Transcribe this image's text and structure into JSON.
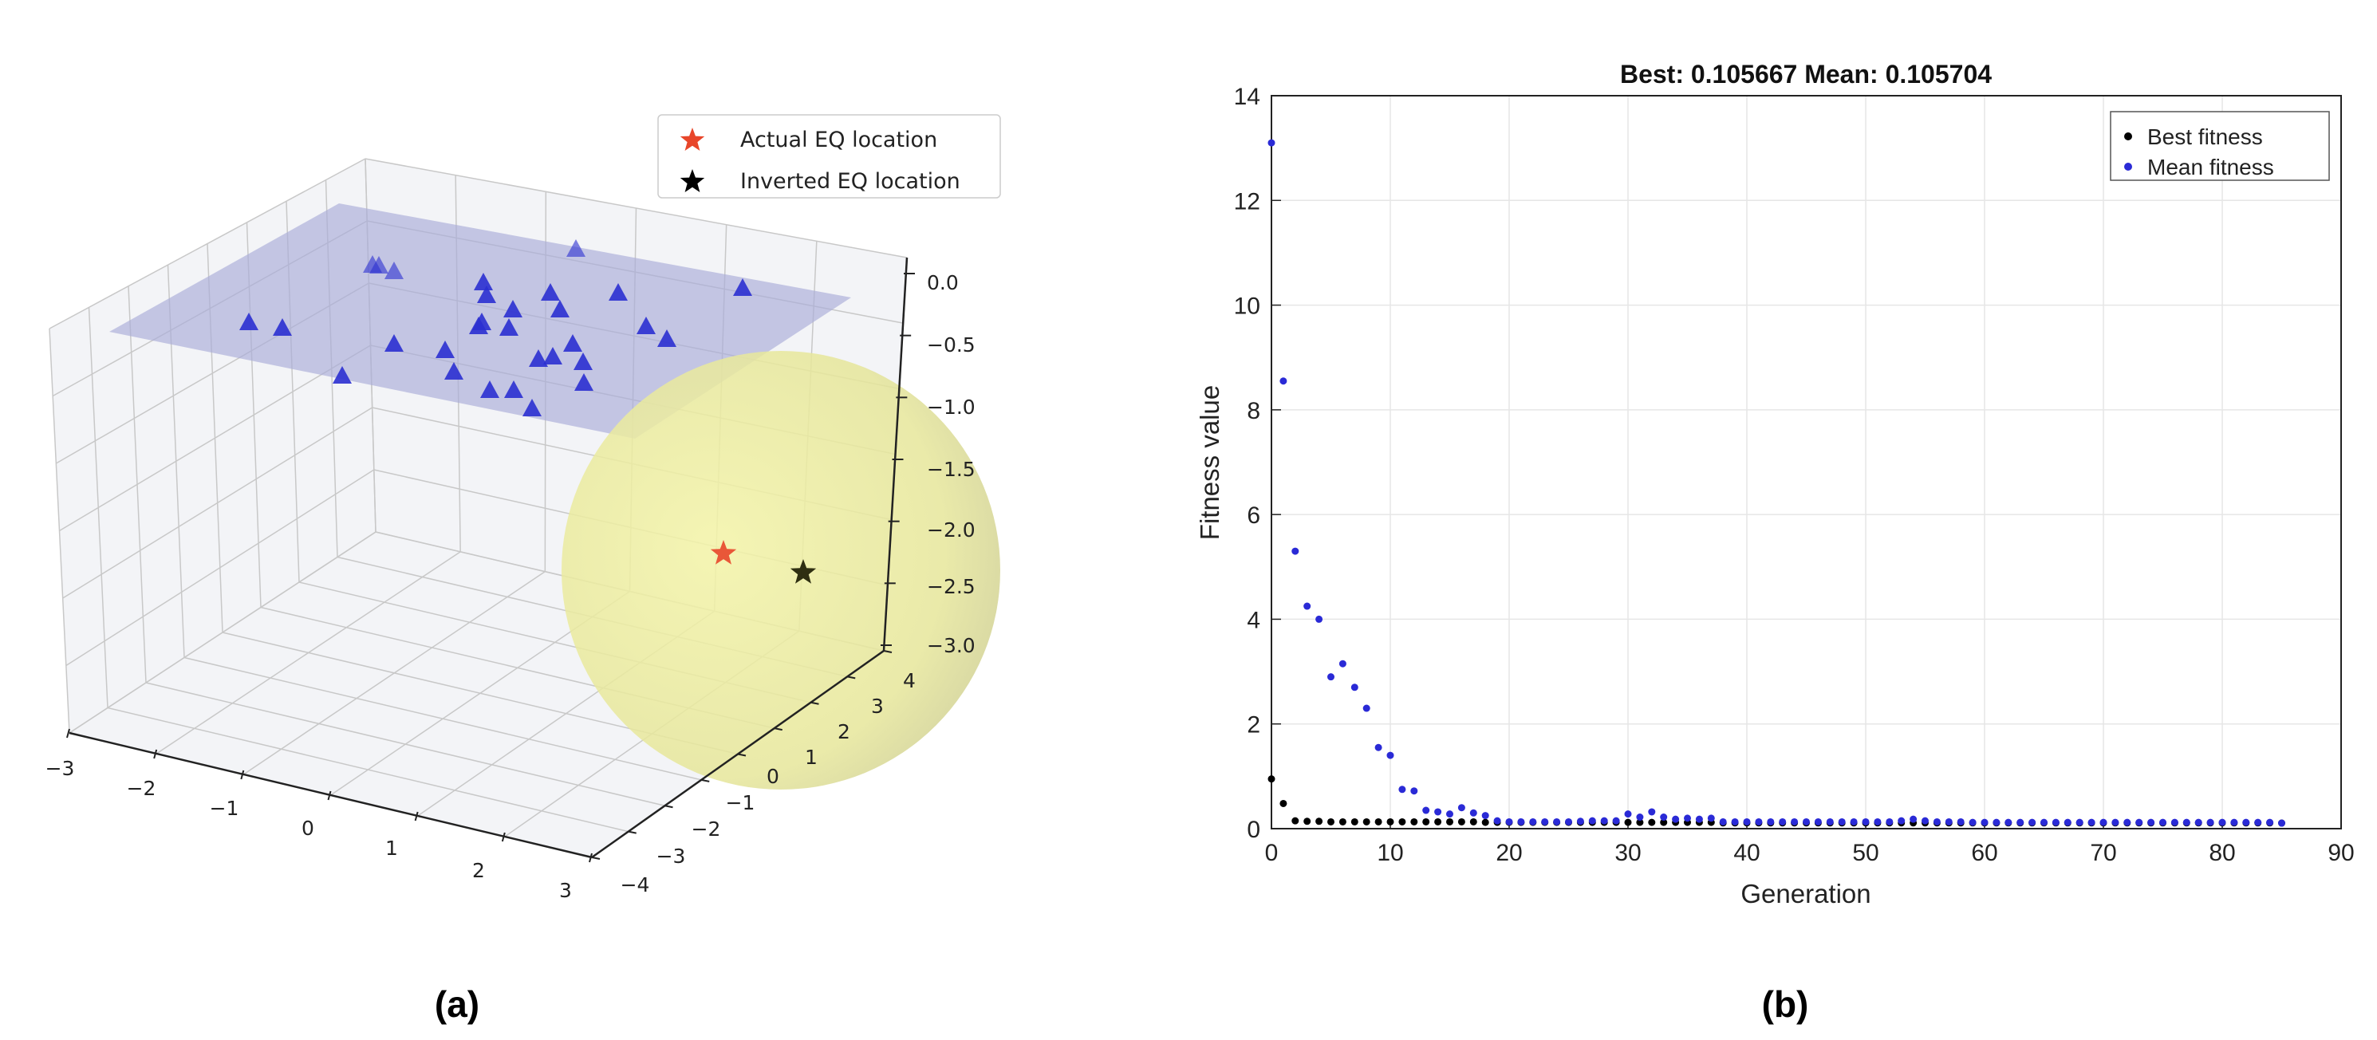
{
  "captions": {
    "a": "(a)",
    "b": "(b)"
  },
  "chart_data": [
    {
      "type": "scatter3d",
      "x_ticks": [
        "−3",
        "−2",
        "−1",
        "0",
        "1",
        "2",
        "3"
      ],
      "y_ticks": [
        "−4",
        "−3",
        "−2",
        "−1",
        "0",
        "1",
        "2",
        "3",
        "4"
      ],
      "z_ticks": [
        "0.0",
        "−0.5",
        "−1.0",
        "−1.5",
        "−2.0",
        "−2.5",
        "−3.0"
      ],
      "xlim": [
        -3,
        3
      ],
      "ylim": [
        -4,
        4
      ],
      "zlim": [
        -3,
        0
      ],
      "grid": true,
      "legend": {
        "placement": "top-right",
        "entries": [
          {
            "label": "Actual EQ location",
            "marker": "star",
            "color": "#e8462a"
          },
          {
            "label": "Inverted EQ location",
            "marker": "star",
            "color": "#000000"
          }
        ]
      },
      "station_marker": {
        "marker": "triangle",
        "color": "#2b2fd0",
        "count": 30
      },
      "surface_plane_color": "#a9acd8",
      "sphere_color": "#eeee99"
    },
    {
      "type": "scatter",
      "title": "Best: 0.105667 Mean: 0.105704",
      "xlabel": "Generation",
      "ylabel": "Fitness value",
      "xlim": [
        0,
        90
      ],
      "ylim": [
        0,
        14
      ],
      "x_ticks": [
        0,
        10,
        20,
        30,
        40,
        50,
        60,
        70,
        80,
        90
      ],
      "y_ticks": [
        0,
        2,
        4,
        6,
        8,
        10,
        12,
        14
      ],
      "grid": true,
      "legend": {
        "placement": "top-right"
      },
      "series": [
        {
          "name": "Best fitness",
          "color": "#000000",
          "values": [
            0.95,
            0.48,
            0.15,
            0.14,
            0.14,
            0.13,
            0.13,
            0.13,
            0.13,
            0.13,
            0.13,
            0.13,
            0.13,
            0.13,
            0.13,
            0.13,
            0.13,
            0.13,
            0.12,
            0.12,
            0.12,
            0.12,
            0.12,
            0.12,
            0.12,
            0.12,
            0.12,
            0.12,
            0.12,
            0.12,
            0.12,
            0.12,
            0.12,
            0.12,
            0.12,
            0.12,
            0.12,
            0.12,
            0.11,
            0.11,
            0.11,
            0.11,
            0.11,
            0.11,
            0.11,
            0.11,
            0.11,
            0.11,
            0.11,
            0.11,
            0.11,
            0.11,
            0.11,
            0.11,
            0.11,
            0.11,
            0.11,
            0.11,
            0.11,
            0.11,
            0.11,
            0.11,
            0.11,
            0.11,
            0.11,
            0.11,
            0.11,
            0.11,
            0.11,
            0.11,
            0.11,
            0.11,
            0.11,
            0.11,
            0.11,
            0.11,
            0.11,
            0.11,
            0.11,
            0.11,
            0.11,
            0.11,
            0.11,
            0.11,
            0.11,
            0.106
          ]
        },
        {
          "name": "Mean fitness",
          "color": "#2a2ad6",
          "values": [
            13.1,
            8.55,
            5.3,
            4.25,
            4.0,
            2.9,
            3.15,
            2.7,
            2.3,
            1.55,
            1.4,
            0.75,
            0.72,
            0.35,
            0.32,
            0.28,
            0.4,
            0.3,
            0.25,
            0.15,
            0.13,
            0.13,
            0.13,
            0.13,
            0.13,
            0.13,
            0.14,
            0.15,
            0.15,
            0.15,
            0.28,
            0.22,
            0.32,
            0.22,
            0.18,
            0.2,
            0.18,
            0.2,
            0.13,
            0.13,
            0.13,
            0.13,
            0.13,
            0.13,
            0.13,
            0.13,
            0.13,
            0.13,
            0.13,
            0.13,
            0.13,
            0.13,
            0.13,
            0.15,
            0.18,
            0.15,
            0.13,
            0.13,
            0.13,
            0.12,
            0.12,
            0.12,
            0.12,
            0.12,
            0.12,
            0.12,
            0.12,
            0.12,
            0.12,
            0.12,
            0.12,
            0.12,
            0.12,
            0.12,
            0.12,
            0.12,
            0.12,
            0.12,
            0.12,
            0.12,
            0.12,
            0.12,
            0.12,
            0.12,
            0.12,
            0.106
          ]
        }
      ]
    }
  ]
}
